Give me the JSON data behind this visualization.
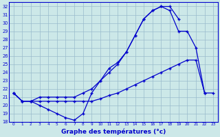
{
  "xlabel": "Graphe des températures (°c)",
  "background_color": "#cce8e8",
  "line_color": "#0000cc",
  "grid_color": "#99bbcc",
  "hours": [
    0,
    1,
    2,
    3,
    4,
    5,
    6,
    7,
    8,
    9,
    10,
    11,
    12,
    13,
    14,
    15,
    16,
    17,
    18,
    19,
    20,
    21,
    22,
    23
  ],
  "series1_dip": [
    21.5,
    20.5,
    20.5,
    20.0,
    19.5,
    19.0,
    18.5,
    18.2,
    19.0,
    21.5,
    23.0,
    24.5,
    25.2,
    26.5,
    28.5,
    30.5,
    31.5,
    32.0,
    31.5,
    29.0,
    29.0,
    27.0,
    21.5,
    null
  ],
  "series2_flat": [
    21.5,
    20.5,
    20.5,
    20.5,
    20.5,
    20.5,
    20.5,
    20.5,
    20.5,
    20.5,
    20.8,
    21.2,
    21.5,
    22.0,
    22.5,
    23.0,
    23.5,
    24.0,
    24.5,
    25.0,
    25.5,
    25.5,
    21.5,
    21.5
  ],
  "series3_mid": [
    21.5,
    20.5,
    20.5,
    21.0,
    21.0,
    21.0,
    21.0,
    21.0,
    21.5,
    22.0,
    23.0,
    24.0,
    25.0,
    26.5,
    28.5,
    30.5,
    31.5,
    32.0,
    32.0,
    30.5,
    null,
    null,
    null,
    null
  ],
  "ylim": [
    18,
    32.5
  ],
  "yticks": [
    18,
    19,
    20,
    21,
    22,
    23,
    24,
    25,
    26,
    27,
    28,
    29,
    30,
    31,
    32
  ],
  "xlim": [
    -0.5,
    23.5
  ],
  "xtick_labels": [
    "0",
    "1",
    "2",
    "3",
    "4",
    "5",
    "6",
    "7",
    "8",
    "9",
    "1011",
    "1213",
    "1415",
    "1617",
    "1819",
    "2021",
    "2223"
  ]
}
